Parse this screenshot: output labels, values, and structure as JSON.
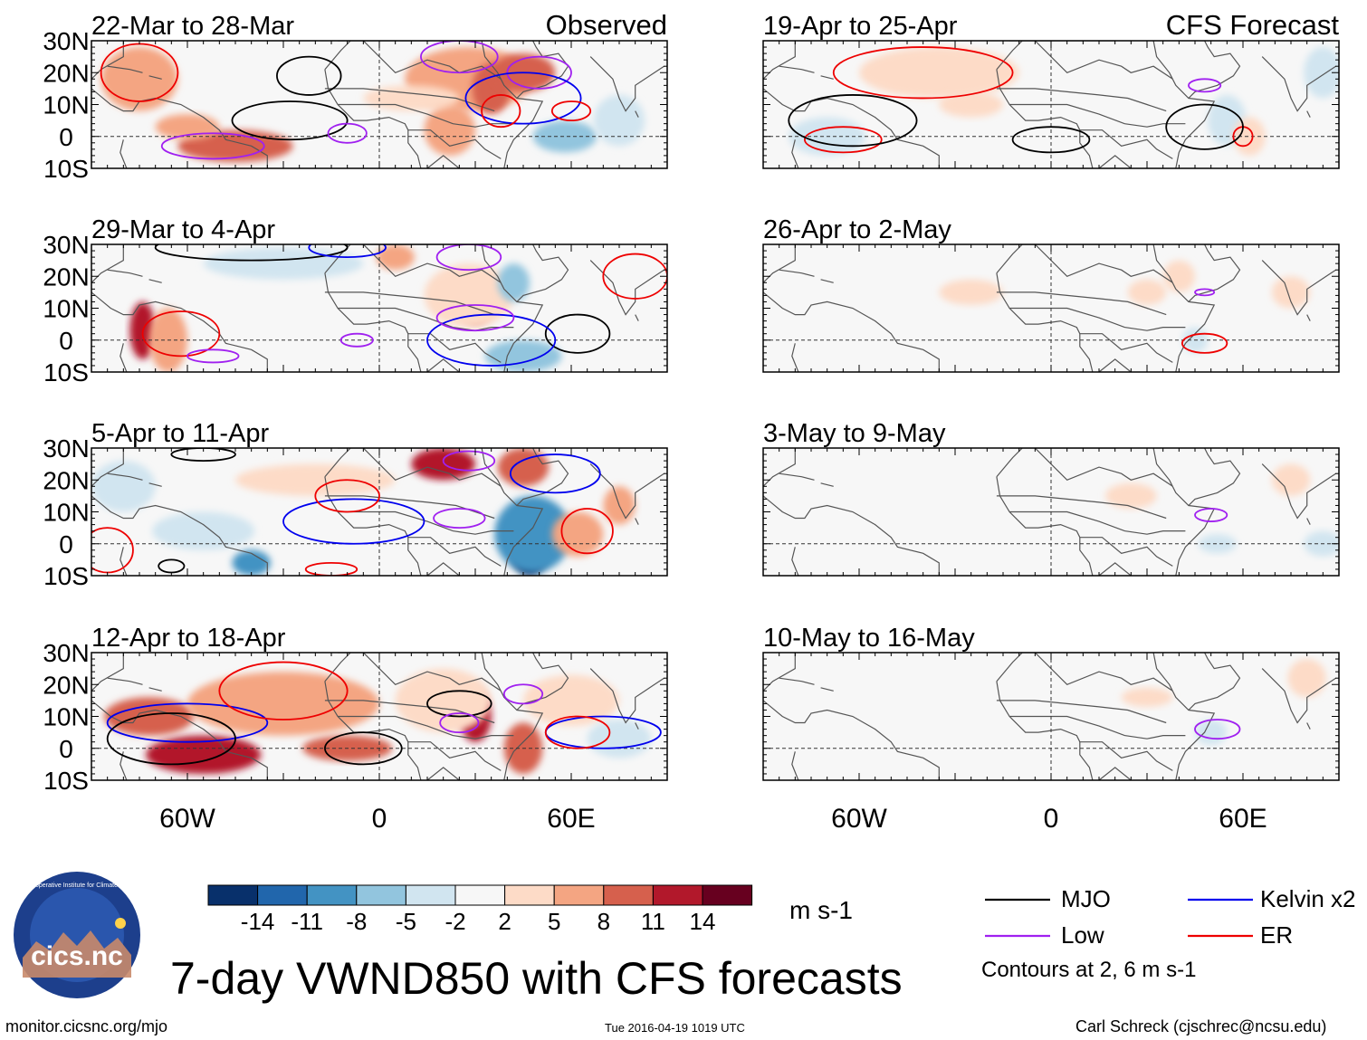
{
  "figure": {
    "title": "7-day VWND850 with CFS forecasts",
    "left_header": "Observed",
    "right_header": "CFS Forecast",
    "units": "m s-1",
    "contours_note": "Contours at 2, 6 m s-1",
    "footer_left": "monitor.cicsnc.org/mjo",
    "footer_center": "Tue 2016-04-19 1019 UTC",
    "footer_right": "Carl Schreck (cjschrec@ncsu.edu)",
    "logo": {
      "text": "cics.nc",
      "ring_text": "Cooperative Institute for Climate and Satellites"
    }
  },
  "chart_data": {
    "type": "heatmap",
    "variable": "850-hPa meridional wind anomaly (VWND850)",
    "xlim": [
      -90,
      90
    ],
    "ylim": [
      -10,
      30
    ],
    "x_ticks": [
      {
        "value": -60,
        "label": "60W"
      },
      {
        "value": 0,
        "label": "0"
      },
      {
        "value": 60,
        "label": "60E"
      }
    ],
    "y_ticks": [
      {
        "value": 30,
        "label": "30N"
      },
      {
        "value": 20,
        "label": "20N"
      },
      {
        "value": 10,
        "label": "10N"
      },
      {
        "value": 0,
        "label": "0"
      },
      {
        "value": -10,
        "label": "10S"
      }
    ],
    "colorbar": {
      "levels": [
        "-14",
        "-11",
        "-8",
        "-5",
        "-2",
        "2",
        "5",
        "8",
        "11",
        "14"
      ],
      "colors": [
        "#08306b",
        "#2166ac",
        "#4393c3",
        "#92c5de",
        "#d1e5f0",
        "#f7f7f7",
        "#fddbc7",
        "#f4a582",
        "#d6604d",
        "#b2182b",
        "#67001f"
      ]
    },
    "legend": [
      {
        "name": "MJO",
        "color": "#000000"
      },
      {
        "name": "Kelvin x2",
        "color": "#0000ee"
      },
      {
        "name": "Low",
        "color": "#a020f0"
      },
      {
        "name": "ER",
        "color": "#ee0000"
      }
    ],
    "panels": [
      {
        "label": "22-Mar to 28-Mar",
        "column": "Observed",
        "row": 0,
        "anomalies": [
          {
            "lon": -75,
            "lat": 18,
            "lon_r": 12,
            "lat_r": 10,
            "level": 2
          },
          {
            "lon": -45,
            "lat": -3,
            "lon_r": 18,
            "lat_r": 5,
            "level": 3
          },
          {
            "lon": -60,
            "lat": 3,
            "lon_r": 10,
            "lat_r": 4,
            "level": 2
          },
          {
            "lon": 28,
            "lat": 18,
            "lon_r": 20,
            "lat_r": 10,
            "level": 2
          },
          {
            "lon": 35,
            "lat": 15,
            "lon_r": 6,
            "lat_r": 8,
            "level": 3
          },
          {
            "lon": 45,
            "lat": 20,
            "lon_r": 10,
            "lat_r": 6,
            "level": 3
          },
          {
            "lon": 22,
            "lat": 2,
            "lon_r": 8,
            "lat_r": 8,
            "level": 2
          },
          {
            "lon": 58,
            "lat": 0,
            "lon_r": 10,
            "lat_r": 5,
            "level": -2
          },
          {
            "lon": 10,
            "lat": 12,
            "lon_r": 15,
            "lat_r": 4,
            "level": 1
          },
          {
            "lon": 75,
            "lat": 5,
            "lon_r": 8,
            "lat_r": 8,
            "level": -1
          }
        ],
        "contours": [
          {
            "type": "MJO",
            "lon": -22,
            "lat": 19,
            "lon_r": 10,
            "lat_r": 6
          },
          {
            "type": "MJO",
            "lon": -28,
            "lat": 5,
            "lon_r": 18,
            "lat_r": 6
          },
          {
            "type": "Low",
            "lon": -52,
            "lat": -3,
            "lon_r": 16,
            "lat_r": 4
          },
          {
            "type": "Low",
            "lon": -10,
            "lat": 1,
            "lon_r": 6,
            "lat_r": 3
          },
          {
            "type": "Low",
            "lon": 25,
            "lat": 25,
            "lon_r": 12,
            "lat_r": 5
          },
          {
            "type": "Low",
            "lon": 50,
            "lat": 20,
            "lon_r": 10,
            "lat_r": 5
          },
          {
            "type": "Kelvin x2",
            "lon": 45,
            "lat": 12,
            "lon_r": 18,
            "lat_r": 8
          },
          {
            "type": "ER",
            "lon": -75,
            "lat": 20,
            "lon_r": 12,
            "lat_r": 9
          },
          {
            "type": "ER",
            "lon": 38,
            "lat": 8,
            "lon_r": 6,
            "lat_r": 5
          },
          {
            "type": "ER",
            "lon": 60,
            "lat": 8,
            "lon_r": 6,
            "lat_r": 3
          }
        ]
      },
      {
        "label": "29-Mar to 4-Apr",
        "column": "Observed",
        "row": 1,
        "anomalies": [
          {
            "lon": -74,
            "lat": 3,
            "lon_r": 4,
            "lat_r": 9,
            "level": 4
          },
          {
            "lon": -66,
            "lat": 0,
            "lon_r": 6,
            "lat_r": 10,
            "level": 2
          },
          {
            "lon": 30,
            "lat": 12,
            "lon_r": 6,
            "lat_r": 7,
            "level": 3
          },
          {
            "lon": 28,
            "lat": 14,
            "lon_r": 14,
            "lat_r": 10,
            "level": 1
          },
          {
            "lon": 5,
            "lat": 26,
            "lon_r": 6,
            "lat_r": 4,
            "level": 2
          },
          {
            "lon": 45,
            "lat": -5,
            "lon_r": 12,
            "lat_r": 5,
            "level": -2
          },
          {
            "lon": -30,
            "lat": 24,
            "lon_r": 25,
            "lat_r": 5,
            "level": -1
          },
          {
            "lon": 42,
            "lat": 18,
            "lon_r": 5,
            "lat_r": 6,
            "level": -2
          }
        ],
        "contours": [
          {
            "type": "MJO",
            "lon": -40,
            "lat": 29,
            "lon_r": 30,
            "lat_r": 4
          },
          {
            "type": "MJO",
            "lon": 62,
            "lat": 2,
            "lon_r": 10,
            "lat_r": 6
          },
          {
            "type": "ER",
            "lon": -62,
            "lat": 2,
            "lon_r": 12,
            "lat_r": 7
          },
          {
            "type": "ER",
            "lon": 80,
            "lat": 20,
            "lon_r": 10,
            "lat_r": 7
          },
          {
            "type": "Kelvin x2",
            "lon": 35,
            "lat": 0,
            "lon_r": 20,
            "lat_r": 8
          },
          {
            "type": "Kelvin x2",
            "lon": -10,
            "lat": 29,
            "lon_r": 12,
            "lat_r": 3
          },
          {
            "type": "Low",
            "lon": -52,
            "lat": -5,
            "lon_r": 8,
            "lat_r": 2
          },
          {
            "type": "Low",
            "lon": -7,
            "lat": 0,
            "lon_r": 5,
            "lat_r": 2
          },
          {
            "type": "Low",
            "lon": 30,
            "lat": 7,
            "lon_r": 12,
            "lat_r": 4
          },
          {
            "type": "Low",
            "lon": 28,
            "lat": 26,
            "lon_r": 10,
            "lat_r": 4
          }
        ]
      },
      {
        "label": "5-Apr to 11-Apr",
        "column": "Observed",
        "row": 2,
        "anomalies": [
          {
            "lon": 47,
            "lat": -2,
            "lon_r": 6,
            "lat_r": 8,
            "level": -5
          },
          {
            "lon": 48,
            "lat": 3,
            "lon_r": 12,
            "lat_r": 12,
            "level": -3
          },
          {
            "lon": 20,
            "lat": 25,
            "lon_r": 10,
            "lat_r": 5,
            "level": 4
          },
          {
            "lon": 45,
            "lat": 24,
            "lon_r": 8,
            "lat_r": 6,
            "level": 3
          },
          {
            "lon": 75,
            "lat": 12,
            "lon_r": 5,
            "lat_r": 6,
            "level": 2
          },
          {
            "lon": -40,
            "lat": -6,
            "lon_r": 6,
            "lat_r": 4,
            "level": -3
          },
          {
            "lon": -55,
            "lat": 4,
            "lon_r": 16,
            "lat_r": 6,
            "level": -1
          },
          {
            "lon": -20,
            "lat": 20,
            "lon_r": 25,
            "lat_r": 5,
            "level": 1
          },
          {
            "lon": -80,
            "lat": 18,
            "lon_r": 10,
            "lat_r": 8,
            "level": -1
          },
          {
            "lon": 62,
            "lat": 3,
            "lon_r": 8,
            "lat_r": 7,
            "level": 2
          }
        ],
        "contours": [
          {
            "type": "Kelvin x2",
            "lon": -8,
            "lat": 7,
            "lon_r": 22,
            "lat_r": 7
          },
          {
            "type": "Kelvin x2",
            "lon": 55,
            "lat": 22,
            "lon_r": 14,
            "lat_r": 6
          },
          {
            "type": "ER",
            "lon": -85,
            "lat": -2,
            "lon_r": 8,
            "lat_r": 7
          },
          {
            "type": "ER",
            "lon": -10,
            "lat": 15,
            "lon_r": 10,
            "lat_r": 5
          },
          {
            "type": "ER",
            "lon": 65,
            "lat": 4,
            "lon_r": 8,
            "lat_r": 7
          },
          {
            "type": "ER",
            "lon": -15,
            "lat": -8,
            "lon_r": 8,
            "lat_r": 2
          },
          {
            "type": "MJO",
            "lon": -65,
            "lat": -7,
            "lon_r": 4,
            "lat_r": 2
          },
          {
            "type": "MJO",
            "lon": -55,
            "lat": 28,
            "lon_r": 10,
            "lat_r": 2
          },
          {
            "type": "Low",
            "lon": 25,
            "lat": 8,
            "lon_r": 8,
            "lat_r": 3
          },
          {
            "type": "Low",
            "lon": 28,
            "lat": 26,
            "lon_r": 8,
            "lat_r": 3
          }
        ]
      },
      {
        "label": "12-Apr to 18-Apr",
        "column": "Observed",
        "row": 3,
        "anomalies": [
          {
            "lon": -55,
            "lat": -2,
            "lon_r": 18,
            "lat_r": 6,
            "level": 4
          },
          {
            "lon": -72,
            "lat": 10,
            "lon_r": 14,
            "lat_r": 6,
            "level": 3
          },
          {
            "lon": -10,
            "lat": 0,
            "lon_r": 14,
            "lat_r": 4,
            "level": 3
          },
          {
            "lon": 30,
            "lat": 10,
            "lon_r": 5,
            "lat_r": 8,
            "level": 4
          },
          {
            "lon": 45,
            "lat": 0,
            "lon_r": 6,
            "lat_r": 8,
            "level": 3
          },
          {
            "lon": -30,
            "lat": 14,
            "lon_r": 30,
            "lat_r": 10,
            "level": 2
          },
          {
            "lon": 20,
            "lat": 15,
            "lon_r": 15,
            "lat_r": 10,
            "level": 1
          },
          {
            "lon": 60,
            "lat": 15,
            "lon_r": 15,
            "lat_r": 8,
            "level": 1
          },
          {
            "lon": 75,
            "lat": 3,
            "lon_r": 10,
            "lat_r": 6,
            "level": -1
          }
        ],
        "contours": [
          {
            "type": "Kelvin x2",
            "lon": -60,
            "lat": 8,
            "lon_r": 25,
            "lat_r": 6
          },
          {
            "type": "Kelvin x2",
            "lon": 70,
            "lat": 5,
            "lon_r": 18,
            "lat_r": 5
          },
          {
            "type": "MJO",
            "lon": -5,
            "lat": 0,
            "lon_r": 12,
            "lat_r": 5
          },
          {
            "type": "MJO",
            "lon": -65,
            "lat": 3,
            "lon_r": 20,
            "lat_r": 8
          },
          {
            "type": "MJO",
            "lon": 25,
            "lat": 14,
            "lon_r": 10,
            "lat_r": 4
          },
          {
            "type": "ER",
            "lon": -30,
            "lat": 18,
            "lon_r": 20,
            "lat_r": 9
          },
          {
            "type": "ER",
            "lon": 62,
            "lat": 5,
            "lon_r": 10,
            "lat_r": 5
          },
          {
            "type": "Low",
            "lon": 25,
            "lat": 8,
            "lon_r": 6,
            "lat_r": 3
          },
          {
            "type": "Low",
            "lon": 45,
            "lat": 17,
            "lon_r": 6,
            "lat_r": 3
          }
        ]
      },
      {
        "label": "19-Apr to 25-Apr",
        "column": "CFS Forecast",
        "row": 0,
        "anomalies": [
          {
            "lon": -35,
            "lat": 20,
            "lon_r": 25,
            "lat_r": 8,
            "level": 1
          },
          {
            "lon": -70,
            "lat": 0,
            "lon_r": 12,
            "lat_r": 6,
            "level": -1
          },
          {
            "lon": 55,
            "lat": 5,
            "lon_r": 6,
            "lat_r": 8,
            "level": -1
          },
          {
            "lon": 62,
            "lat": 0,
            "lon_r": 5,
            "lat_r": 6,
            "level": 1
          },
          {
            "lon": -25,
            "lat": 10,
            "lon_r": 10,
            "lat_r": 4,
            "level": 1
          },
          {
            "lon": 85,
            "lat": 20,
            "lon_r": 6,
            "lat_r": 8,
            "level": -1
          }
        ],
        "contours": [
          {
            "type": "ER",
            "lon": -40,
            "lat": 20,
            "lon_r": 28,
            "lat_r": 8
          },
          {
            "type": "ER",
            "lon": -65,
            "lat": -1,
            "lon_r": 12,
            "lat_r": 4
          },
          {
            "type": "ER",
            "lon": 60,
            "lat": 0,
            "lon_r": 3,
            "lat_r": 3
          },
          {
            "type": "MJO",
            "lon": 0,
            "lat": -1,
            "lon_r": 12,
            "lat_r": 4
          },
          {
            "type": "MJO",
            "lon": -62,
            "lat": 5,
            "lon_r": 20,
            "lat_r": 8
          },
          {
            "type": "MJO",
            "lon": 48,
            "lat": 3,
            "lon_r": 12,
            "lat_r": 7
          },
          {
            "type": "Low",
            "lon": 48,
            "lat": 16,
            "lon_r": 5,
            "lat_r": 2
          }
        ]
      },
      {
        "label": "26-Apr to 2-May",
        "column": "CFS Forecast",
        "row": 1,
        "anomalies": [
          {
            "lon": 40,
            "lat": 20,
            "lon_r": 5,
            "lat_r": 5,
            "level": 1
          },
          {
            "lon": -25,
            "lat": 15,
            "lon_r": 10,
            "lat_r": 4,
            "level": 1
          },
          {
            "lon": 30,
            "lat": 15,
            "lon_r": 6,
            "lat_r": 4,
            "level": 1
          },
          {
            "lon": 75,
            "lat": 15,
            "lon_r": 6,
            "lat_r": 5,
            "level": 1
          },
          {
            "lon": 45,
            "lat": 0,
            "lon_r": 4,
            "lat_r": 4,
            "level": -1
          }
        ],
        "contours": [
          {
            "type": "ER",
            "lon": 48,
            "lat": -1,
            "lon_r": 7,
            "lat_r": 3
          },
          {
            "type": "Low",
            "lon": 48,
            "lat": 15,
            "lon_r": 3,
            "lat_r": 1
          }
        ]
      },
      {
        "label": "3-May to 9-May",
        "column": "CFS Forecast",
        "row": 2,
        "anomalies": [
          {
            "lon": 25,
            "lat": 15,
            "lon_r": 8,
            "lat_r": 4,
            "level": 1
          },
          {
            "lon": 75,
            "lat": 20,
            "lon_r": 6,
            "lat_r": 5,
            "level": 1
          },
          {
            "lon": 52,
            "lat": 0,
            "lon_r": 6,
            "lat_r": 3,
            "level": -1
          },
          {
            "lon": 85,
            "lat": 0,
            "lon_r": 6,
            "lat_r": 4,
            "level": -1
          }
        ],
        "contours": [
          {
            "type": "Low",
            "lon": 50,
            "lat": 9,
            "lon_r": 5,
            "lat_r": 2
          }
        ]
      },
      {
        "label": "10-May to 16-May",
        "column": "CFS Forecast",
        "row": 3,
        "anomalies": [
          {
            "lon": 30,
            "lat": 16,
            "lon_r": 8,
            "lat_r": 3,
            "level": 1
          },
          {
            "lon": 80,
            "lat": 22,
            "lon_r": 6,
            "lat_r": 6,
            "level": 1
          },
          {
            "lon": 50,
            "lat": 5,
            "lon_r": 5,
            "lat_r": 4,
            "level": -1
          }
        ],
        "contours": [
          {
            "type": "Low",
            "lon": 52,
            "lat": 6,
            "lon_r": 7,
            "lat_r": 3
          }
        ]
      }
    ]
  }
}
